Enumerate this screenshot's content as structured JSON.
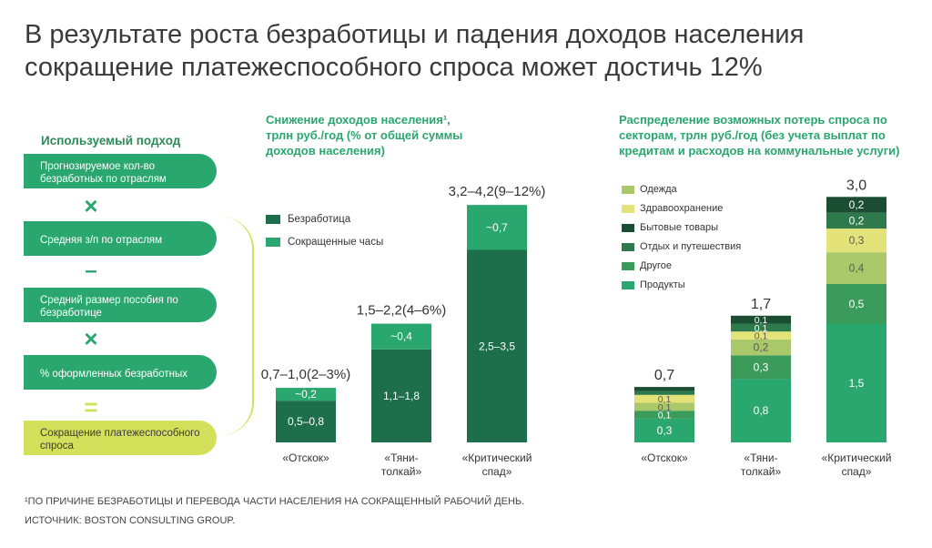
{
  "title": {
    "line1": "В результате роста безработицы и падения доходов населения",
    "line2": "сокращение платежеспособного спроса может достичь 12%"
  },
  "approach": {
    "title": "Используемый подход",
    "steps": [
      "Прогнозируемое кол-во безработных по отраслям",
      "Средняя з/п по отраслям",
      "Средний размер пособия по безработице",
      "% оформленных безработных",
      "Сокращение платежеспособного спроса"
    ],
    "operators": [
      "×",
      "–",
      "×",
      "="
    ]
  },
  "left_panel": {
    "title_line1": "Снижение доходов населения¹,",
    "title_line2": "трлн руб./год (% от общей суммы",
    "title_line3": "доходов населения)",
    "legend": [
      "Безработица",
      "Сокращенные часы"
    ]
  },
  "right_panel": {
    "title_line1": "Распределение возможных потерь спроса по",
    "title_line2": "секторам, трлн руб./год (без учета выплат по",
    "title_line3": "кредитам и расходов на коммунальные услуги)",
    "legend": [
      "Одежда",
      "Здравоохранение",
      "Бытовые товары",
      "Отдых и путешествия",
      "Другое",
      "Продукты"
    ]
  },
  "colors": {
    "unemployment": "#1d6e4a",
    "short_hours": "#2aa66f",
    "clothing": "#a8c86a",
    "healthcare": "#e3e37a",
    "household": "#1b4d33",
    "leisure": "#2e7a4c",
    "other": "#3b9b5a",
    "food": "#2aa66f",
    "accent": "#d3e05a"
  },
  "chart_data": [
    {
      "type": "bar",
      "stacked": true,
      "categories": [
        "«Отскок»",
        "«Тяни-толкай»",
        "«Критический спад»"
      ],
      "totals": [
        "0,7–1,0(2–3%)",
        "1,5–2,2(4–6%)",
        "3,2–4,2(9–12%)"
      ],
      "series": [
        {
          "name": "Безработица",
          "labels": [
            "0,5–0,8",
            "1,1–1,8",
            "2,5–3,5"
          ],
          "values": [
            0.65,
            1.45,
            3.0
          ]
        },
        {
          "name": "Сокращенные часы",
          "labels": [
            "~0,2",
            "~0,4",
            "~0,7"
          ],
          "values": [
            0.2,
            0.4,
            0.7
          ]
        }
      ]
    },
    {
      "type": "bar",
      "stacked": true,
      "categories": [
        "«Отскок»",
        "«Тяни-толкай»",
        "«Критический спад»"
      ],
      "totals": [
        "0,7",
        "1,7",
        "3,0"
      ],
      "series": [
        {
          "name": "Продукты",
          "values": [
            0.3,
            0.8,
            1.5
          ]
        },
        {
          "name": "Другое",
          "values": [
            0.1,
            0.3,
            0.5
          ]
        },
        {
          "name": "Одежда",
          "values": [
            0.1,
            0.2,
            0.4
          ]
        },
        {
          "name": "Здравоохранение",
          "values": [
            0.1,
            0.1,
            0.3
          ]
        },
        {
          "name": "Отдых и путешествия",
          "values": [
            0.05,
            0.1,
            0.2
          ]
        },
        {
          "name": "Бытовые товары",
          "values": [
            0.05,
            0.1,
            0.2
          ]
        }
      ],
      "segment_labels": [
        [
          "0,3",
          "0,1",
          "0,1",
          "0,1",
          "",
          ""
        ],
        [
          "0,8",
          "0,3",
          "0,2",
          "0,1",
          "0,1",
          "0,1"
        ],
        [
          "1,5",
          "0,5",
          "0,4",
          "0,3",
          "0,2",
          "0,2"
        ]
      ]
    }
  ],
  "footnotes": [
    "¹ПО ПРИЧИНЕ БЕЗРАБОТИЦЫ И ПЕРЕВОДА ЧАСТИ НАСЕЛЕНИЯ НА СОКРАЩЕННЫЙ РАБОЧИЙ ДЕНЬ.",
    "ИСТОЧНИК: BOSTON CONSULTING GROUP."
  ]
}
